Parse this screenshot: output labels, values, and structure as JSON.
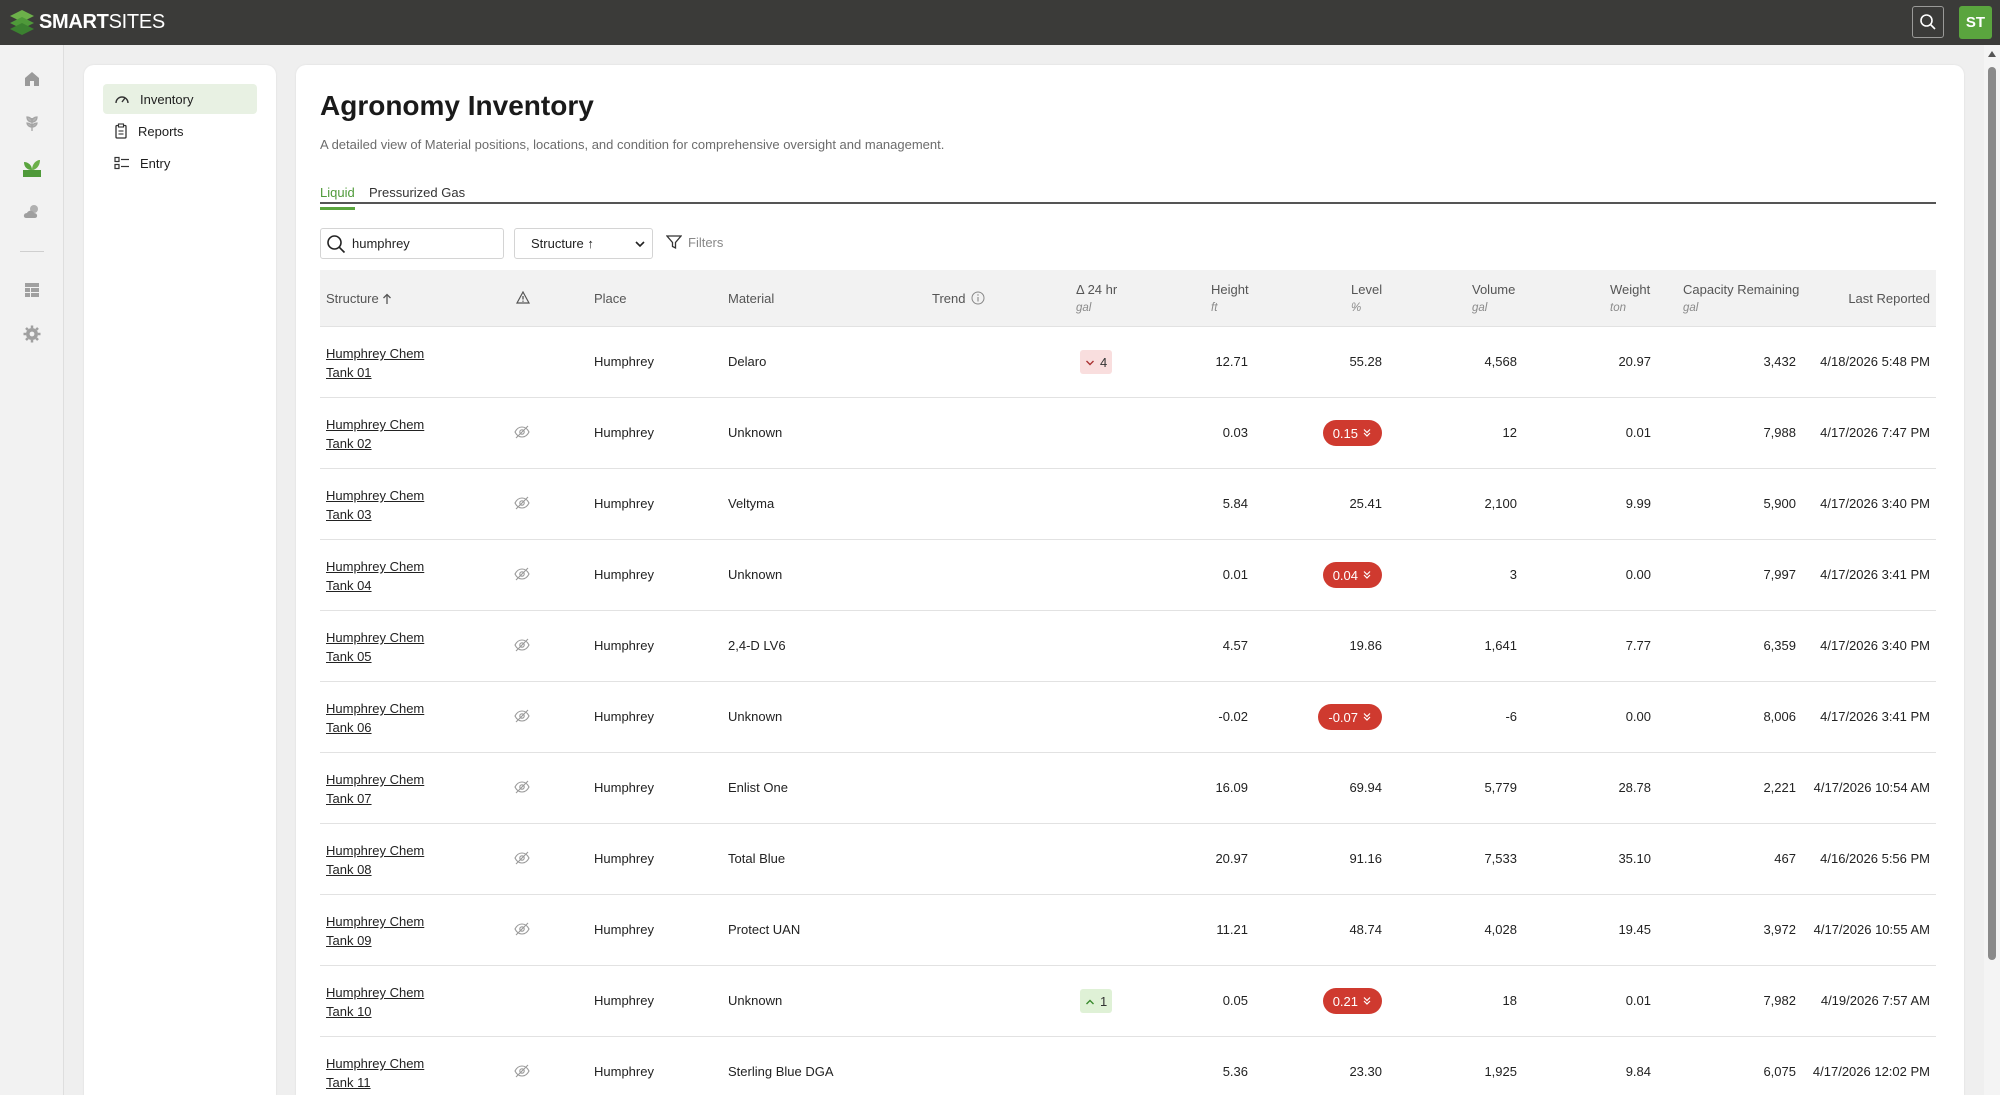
{
  "app": {
    "logo_bold": "SMART",
    "logo_light": "SITES",
    "user_initials": "ST"
  },
  "colors": {
    "accent": "#5aa53e",
    "topbar": "#3b3b39",
    "alert": "#cf3a2f"
  },
  "rail": {
    "icons": [
      "home-icon",
      "crop-icon",
      "agronomy-icon",
      "weather-icon",
      "table-icon",
      "settings-icon"
    ]
  },
  "subnav": {
    "items": [
      {
        "label": "Inventory",
        "icon": "gauge-icon"
      },
      {
        "label": "Reports",
        "icon": "clipboard-icon"
      },
      {
        "label": "Entry",
        "icon": "list-icon"
      }
    ]
  },
  "page": {
    "title": "Agronomy Inventory",
    "description": "A detailed view of Material positions, locations, and condition for comprehensive oversight and management.",
    "tabs": [
      "Liquid",
      "Pressurized Gas"
    ],
    "active_tab": "Liquid"
  },
  "toolbar": {
    "search_value": "humphrey",
    "sort_value": "Structure ↑",
    "filters_label": "Filters"
  },
  "table": {
    "headers": {
      "structure": "Structure",
      "place": "Place",
      "material": "Material",
      "trend": "Trend",
      "delta": "Δ 24 hr",
      "delta_unit": "gal",
      "height": "Height",
      "height_unit": "ft",
      "level": "Level",
      "level_unit": "%",
      "volume": "Volume",
      "volume_unit": "gal",
      "weight": "Weight",
      "weight_unit": "ton",
      "capacity": "Capacity Remaining",
      "capacity_unit": "gal",
      "last_reported": "Last Reported"
    },
    "rows": [
      {
        "name1": "Humphrey Chem",
        "name2": "Tank 01",
        "hidden": false,
        "place": "Humphrey",
        "material": "Delaro",
        "delta": "4",
        "delta_dir": "down",
        "height": "12.71",
        "level": "55.28",
        "level_alert": false,
        "volume": "4,568",
        "weight": "20.97",
        "capacity": "3,432",
        "last_reported": "4/18/2026 5:48 PM"
      },
      {
        "name1": "Humphrey Chem",
        "name2": "Tank 02",
        "hidden": true,
        "place": "Humphrey",
        "material": "Unknown",
        "delta": "",
        "delta_dir": "",
        "height": "0.03",
        "level": "0.15",
        "level_alert": true,
        "volume": "12",
        "weight": "0.01",
        "capacity": "7,988",
        "last_reported": "4/17/2026 7:47 PM"
      },
      {
        "name1": "Humphrey Chem",
        "name2": "Tank 03",
        "hidden": true,
        "place": "Humphrey",
        "material": "Veltyma",
        "delta": "",
        "delta_dir": "",
        "height": "5.84",
        "level": "25.41",
        "level_alert": false,
        "volume": "2,100",
        "weight": "9.99",
        "capacity": "5,900",
        "last_reported": "4/17/2026 3:40 PM"
      },
      {
        "name1": "Humphrey Chem",
        "name2": "Tank 04",
        "hidden": true,
        "place": "Humphrey",
        "material": "Unknown",
        "delta": "",
        "delta_dir": "",
        "height": "0.01",
        "level": "0.04",
        "level_alert": true,
        "volume": "3",
        "weight": "0.00",
        "capacity": "7,997",
        "last_reported": "4/17/2026 3:41 PM"
      },
      {
        "name1": "Humphrey Chem",
        "name2": "Tank 05",
        "hidden": true,
        "place": "Humphrey",
        "material": "2,4-D LV6",
        "delta": "",
        "delta_dir": "",
        "height": "4.57",
        "level": "19.86",
        "level_alert": false,
        "volume": "1,641",
        "weight": "7.77",
        "capacity": "6,359",
        "last_reported": "4/17/2026 3:40 PM"
      },
      {
        "name1": "Humphrey Chem",
        "name2": "Tank 06",
        "hidden": true,
        "place": "Humphrey",
        "material": "Unknown",
        "delta": "",
        "delta_dir": "",
        "height": "-0.02",
        "level": "-0.07",
        "level_alert": true,
        "volume": "-6",
        "weight": "0.00",
        "capacity": "8,006",
        "last_reported": "4/17/2026 3:41 PM"
      },
      {
        "name1": "Humphrey Chem",
        "name2": "Tank 07",
        "hidden": true,
        "place": "Humphrey",
        "material": "Enlist One",
        "delta": "",
        "delta_dir": "",
        "height": "16.09",
        "level": "69.94",
        "level_alert": false,
        "volume": "5,779",
        "weight": "28.78",
        "capacity": "2,221",
        "last_reported": "4/17/2026 10:54 AM"
      },
      {
        "name1": "Humphrey Chem",
        "name2": "Tank 08",
        "hidden": true,
        "place": "Humphrey",
        "material": "Total Blue",
        "delta": "",
        "delta_dir": "",
        "height": "20.97",
        "level": "91.16",
        "level_alert": false,
        "volume": "7,533",
        "weight": "35.10",
        "capacity": "467",
        "last_reported": "4/16/2026 5:56 PM"
      },
      {
        "name1": "Humphrey Chem",
        "name2": "Tank 09",
        "hidden": true,
        "place": "Humphrey",
        "material": "Protect UAN",
        "delta": "",
        "delta_dir": "",
        "height": "11.21",
        "level": "48.74",
        "level_alert": false,
        "volume": "4,028",
        "weight": "19.45",
        "capacity": "3,972",
        "last_reported": "4/17/2026 10:55 AM"
      },
      {
        "name1": "Humphrey Chem",
        "name2": "Tank 10",
        "hidden": false,
        "place": "Humphrey",
        "material": "Unknown",
        "delta": "1",
        "delta_dir": "up",
        "height": "0.05",
        "level": "0.21",
        "level_alert": true,
        "volume": "18",
        "weight": "0.01",
        "capacity": "7,982",
        "last_reported": "4/19/2026 7:57 AM"
      },
      {
        "name1": "Humphrey Chem",
        "name2": "Tank 11",
        "hidden": true,
        "place": "Humphrey",
        "material": "Sterling Blue DGA",
        "delta": "",
        "delta_dir": "",
        "height": "5.36",
        "level": "23.30",
        "level_alert": false,
        "volume": "1,925",
        "weight": "9.84",
        "capacity": "6,075",
        "last_reported": "4/17/2026 12:02 PM"
      }
    ]
  }
}
